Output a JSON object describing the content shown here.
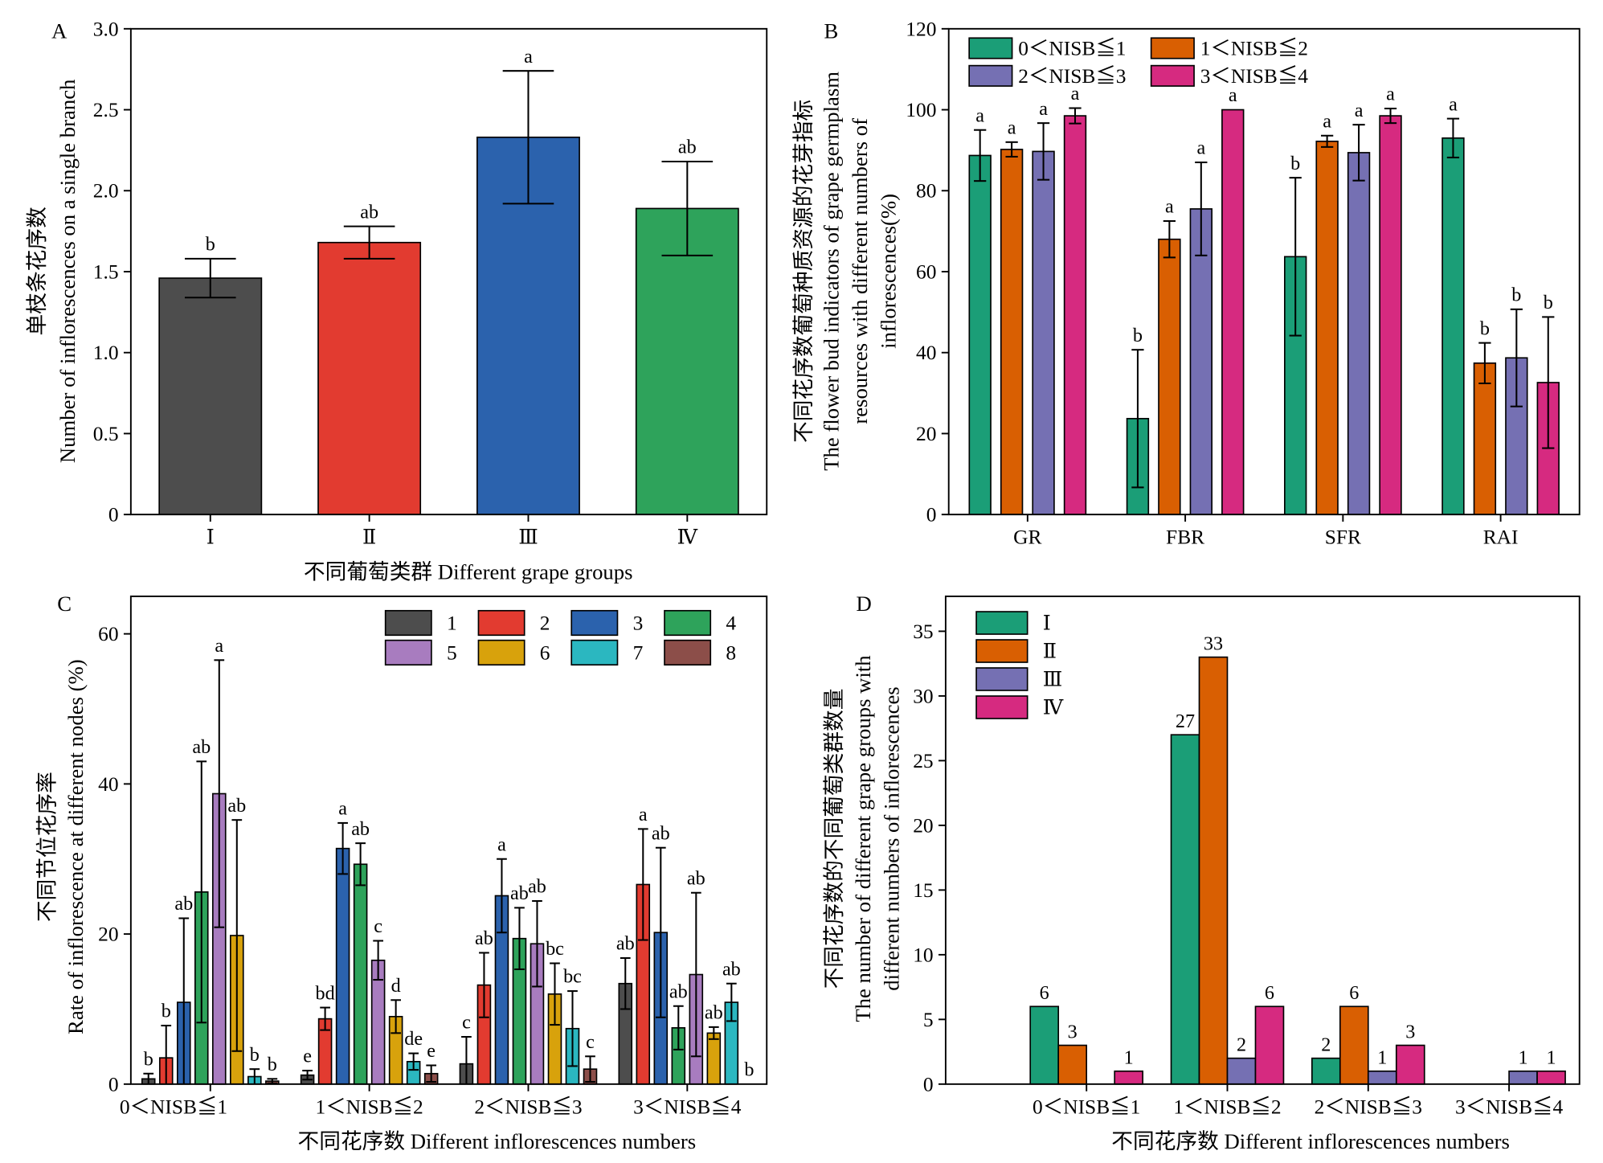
{
  "chart_data": [
    {
      "panel_label": "A",
      "type": "bar",
      "categories": [
        "Ⅰ",
        "Ⅱ",
        "Ⅲ",
        "Ⅳ"
      ],
      "values": [
        1.46,
        1.68,
        2.33,
        1.89
      ],
      "errors": [
        0.12,
        0.1,
        0.41,
        0.29
      ],
      "letters": [
        "b",
        "ab",
        "a",
        "ab"
      ],
      "colors": [
        "#4d4d4d",
        "#e23b30",
        "#2b62ad",
        "#2ea35b"
      ],
      "xlabel": "不同葡萄类群 Different grape groups",
      "ylabel": [
        "单枝条花序数",
        "Number of inflorescences on a single branch"
      ],
      "ylim": [
        0,
        3.0
      ],
      "yticks": [
        "0",
        "0.5",
        "1.0",
        "1.5",
        "2.0",
        "2.5",
        "3.0"
      ],
      "grid": false
    },
    {
      "panel_label": "B",
      "type": "bar",
      "categories": [
        "GR",
        "FBR",
        "SFR",
        "RAI"
      ],
      "series": [
        {
          "name": "0＜NISB≦1",
          "color": "#1b9e77",
          "values": [
            88.7,
            23.7,
            63.7,
            93.0
          ],
          "errors": [
            6.3,
            17.0,
            19.5,
            4.8
          ],
          "letters": [
            "a",
            "b",
            "b",
            "a"
          ]
        },
        {
          "name": "1＜NISB≦2",
          "color": "#d95f02",
          "values": [
            90.2,
            68.0,
            92.2,
            37.4
          ],
          "errors": [
            1.8,
            4.5,
            1.4,
            5.0
          ],
          "letters": [
            "a",
            "a",
            "a",
            "b"
          ]
        },
        {
          "name": "2＜NISB≦3",
          "color": "#7570b3",
          "values": [
            89.7,
            75.5,
            89.4,
            38.7
          ],
          "errors": [
            7.0,
            11.5,
            6.9,
            12.0
          ],
          "letters": [
            "a",
            "a",
            "a",
            "b"
          ]
        },
        {
          "name": "3＜NISB≦4",
          "color": "#d62a80",
          "values": [
            98.5,
            100.0,
            98.5,
            32.6
          ],
          "errors": [
            1.9,
            0,
            1.8,
            16.2
          ],
          "letters": [
            "a",
            "a",
            "a",
            "b"
          ]
        }
      ],
      "ylabel": [
        "不同花序数葡萄种质资源的花芽指标",
        "The flower bud indicators of grape germplasm",
        "resources with different numbers of",
        "inflorescences(%)"
      ],
      "ylim": [
        0,
        120
      ],
      "yticks": [
        "0",
        "20",
        "40",
        "60",
        "80",
        "100",
        "120"
      ],
      "legend": "top-left",
      "grid": false
    },
    {
      "panel_label": "C",
      "type": "bar",
      "categories": [
        "0＜NISB≦1",
        "1＜NISB≦2",
        "2＜NISB≦3",
        "3＜NISB≦4"
      ],
      "series": [
        {
          "name": "1",
          "color": "#4d4d4d",
          "values": [
            0.7,
            1.2,
            2.7,
            13.4
          ],
          "errors": [
            0.7,
            0.6,
            3.6,
            3.4
          ],
          "letters": [
            "b",
            "e",
            "c",
            "ab"
          ]
        },
        {
          "name": "2",
          "color": "#e23b30",
          "values": [
            3.5,
            8.7,
            13.2,
            26.6
          ],
          "errors": [
            4.3,
            1.5,
            4.3,
            7.4
          ],
          "letters": [
            "b",
            "bd",
            "ab",
            "a"
          ]
        },
        {
          "name": "3",
          "color": "#2b62ad",
          "values": [
            10.9,
            31.4,
            25.1,
            20.2
          ],
          "errors": [
            11.2,
            3.4,
            4.9,
            11.3
          ],
          "letters": [
            "ab",
            "a",
            "a",
            "ab"
          ]
        },
        {
          "name": "4",
          "color": "#2ea35b",
          "values": [
            25.6,
            29.3,
            19.4,
            7.5
          ],
          "errors": [
            17.4,
            2.8,
            4.1,
            2.9
          ],
          "letters": [
            "ab",
            "ab",
            "ab",
            "ab"
          ]
        },
        {
          "name": "5",
          "color": "#a87cbf",
          "values": [
            38.7,
            16.5,
            18.7,
            14.6
          ],
          "errors": [
            17.8,
            2.6,
            5.7,
            10.9
          ],
          "letters": [
            "a",
            "c",
            "ab",
            "ab"
          ]
        },
        {
          "name": "6",
          "color": "#d8a20c",
          "values": [
            19.8,
            9.0,
            12.0,
            6.8
          ],
          "errors": [
            15.4,
            2.2,
            4.1,
            0.8
          ],
          "letters": [
            "ab",
            "d",
            "bc",
            "ab"
          ]
        },
        {
          "name": "7",
          "color": "#2bb7c0",
          "values": [
            1.0,
            3.0,
            7.4,
            10.9
          ],
          "errors": [
            1.0,
            1.1,
            5.0,
            2.5
          ],
          "letters": [
            "b",
            "de",
            "bc",
            "ab"
          ]
        },
        {
          "name": "8",
          "color": "#8c4e49",
          "values": [
            0.4,
            1.4,
            2.0,
            0
          ],
          "errors": [
            0.3,
            1.1,
            1.7,
            0
          ],
          "letters": [
            "b",
            "e",
            "c",
            "b"
          ]
        }
      ],
      "xlabel": "不同花序数 Different inflorescences numbers",
      "ylabel": [
        "不同节位花序率",
        "Rate of inflorescence at different nodes (%)"
      ],
      "ylim": [
        0,
        65
      ],
      "yticks": [
        "0",
        "20",
        "40",
        "60"
      ],
      "legend": "top-right",
      "grid": false
    },
    {
      "panel_label": "D",
      "type": "bar",
      "categories": [
        "0＜NISB≦1",
        "1＜NISB≦2",
        "2＜NISB≦3",
        "3＜NISB≦4"
      ],
      "series": [
        {
          "name": "Ⅰ",
          "color": "#1b9e77",
          "values": [
            6,
            27,
            2,
            0
          ]
        },
        {
          "name": "Ⅱ",
          "color": "#d95f02",
          "values": [
            3,
            33,
            6,
            0
          ]
        },
        {
          "name": "Ⅲ",
          "color": "#7570b3",
          "values": [
            0,
            2,
            1,
            1
          ]
        },
        {
          "name": "Ⅳ",
          "color": "#d62a80",
          "values": [
            1,
            6,
            3,
            1
          ]
        }
      ],
      "data_labels": true,
      "xlabel": "不同花序数 Different inflorescences numbers",
      "ylabel": [
        "不同花序数的不同葡萄类群数量",
        "The number of different grape groups with",
        "different numbers of inflorescences"
      ],
      "ylim": [
        0,
        37.7
      ],
      "yticks": [
        "0",
        "5",
        "10",
        "15",
        "20",
        "25",
        "30",
        "35"
      ],
      "legend": "top-left",
      "grid": false
    }
  ]
}
